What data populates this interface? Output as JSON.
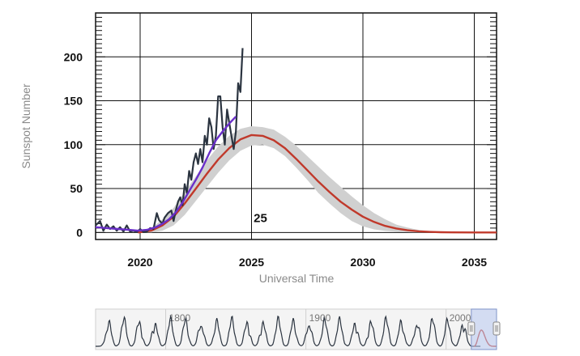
{
  "chart_data": {
    "type": "line",
    "title": "",
    "xlabel": "Universal Time",
    "ylabel": "Sunspot Number",
    "xlim": [
      2018.0,
      2036.0
    ],
    "ylim": [
      -8,
      250
    ],
    "x_ticks": [
      "2020",
      "2025",
      "2030",
      "2035"
    ],
    "y_ticks": [
      "0",
      "50",
      "100",
      "150",
      "200"
    ],
    "grid": true,
    "annotation": {
      "text": "25",
      "x": 2025.4,
      "y": 12
    },
    "series": [
      {
        "role": "observed-monthly",
        "color": "#2b3440",
        "points": [
          [
            2018.0,
            8
          ],
          [
            2018.2,
            13
          ],
          [
            2018.35,
            2
          ],
          [
            2018.5,
            9
          ],
          [
            2018.65,
            4
          ],
          [
            2018.8,
            7
          ],
          [
            2018.95,
            2
          ],
          [
            2019.1,
            6
          ],
          [
            2019.25,
            1
          ],
          [
            2019.4,
            8
          ],
          [
            2019.55,
            1
          ],
          [
            2019.7,
            2
          ],
          [
            2019.85,
            0.5
          ],
          [
            2020.0,
            4
          ],
          [
            2020.15,
            0.5
          ],
          [
            2020.3,
            1
          ],
          [
            2020.45,
            5
          ],
          [
            2020.6,
            4
          ],
          [
            2020.75,
            22
          ],
          [
            2020.85,
            14
          ],
          [
            2021.0,
            10
          ],
          [
            2021.1,
            17
          ],
          [
            2021.25,
            22
          ],
          [
            2021.4,
            25
          ],
          [
            2021.5,
            13
          ],
          [
            2021.6,
            25
          ],
          [
            2021.7,
            35
          ],
          [
            2021.8,
            40
          ],
          [
            2021.9,
            31
          ],
          [
            2022.0,
            55
          ],
          [
            2022.1,
            45
          ],
          [
            2022.2,
            70
          ],
          [
            2022.3,
            60
          ],
          [
            2022.4,
            80
          ],
          [
            2022.5,
            90
          ],
          [
            2022.6,
            78
          ],
          [
            2022.7,
            95
          ],
          [
            2022.8,
            80
          ],
          [
            2022.9,
            110
          ],
          [
            2023.0,
            100
          ],
          [
            2023.1,
            130
          ],
          [
            2023.2,
            120
          ],
          [
            2023.3,
            95
          ],
          [
            2023.4,
            110
          ],
          [
            2023.5,
            155
          ],
          [
            2023.6,
            155
          ],
          [
            2023.7,
            120
          ],
          [
            2023.8,
            100
          ],
          [
            2023.9,
            140
          ],
          [
            2024.0,
            125
          ],
          [
            2024.1,
            110
          ],
          [
            2024.2,
            95
          ],
          [
            2024.3,
            115
          ],
          [
            2024.4,
            170
          ],
          [
            2024.5,
            160
          ],
          [
            2024.6,
            210
          ]
        ]
      },
      {
        "role": "observed-smoothed",
        "color": "#6a2fc9",
        "points": [
          [
            2018.0,
            6
          ],
          [
            2018.5,
            5
          ],
          [
            2019.0,
            4
          ],
          [
            2019.5,
            3
          ],
          [
            2019.9,
            2
          ],
          [
            2020.3,
            3
          ],
          [
            2020.7,
            6
          ],
          [
            2021.0,
            10
          ],
          [
            2021.3,
            15
          ],
          [
            2021.6,
            23
          ],
          [
            2021.9,
            34
          ],
          [
            2022.2,
            47
          ],
          [
            2022.5,
            60
          ],
          [
            2022.8,
            74
          ],
          [
            2023.1,
            90
          ],
          [
            2023.4,
            105
          ],
          [
            2023.7,
            115
          ],
          [
            2024.0,
            124
          ],
          [
            2024.3,
            132
          ]
        ]
      },
      {
        "role": "predicted",
        "color": "#c0392b",
        "points": [
          [
            2019.9,
            0
          ],
          [
            2020.5,
            2
          ],
          [
            2021.0,
            8
          ],
          [
            2021.5,
            18
          ],
          [
            2022.0,
            33
          ],
          [
            2022.5,
            50
          ],
          [
            2023.0,
            67
          ],
          [
            2023.5,
            83
          ],
          [
            2024.0,
            96
          ],
          [
            2024.5,
            106
          ],
          [
            2025.0,
            111
          ],
          [
            2025.5,
            110
          ],
          [
            2026.0,
            105
          ],
          [
            2026.5,
            96
          ],
          [
            2027.0,
            84
          ],
          [
            2027.5,
            71
          ],
          [
            2028.0,
            58
          ],
          [
            2028.5,
            46
          ],
          [
            2029.0,
            35
          ],
          [
            2029.5,
            26
          ],
          [
            2030.0,
            18
          ],
          [
            2030.5,
            12
          ],
          [
            2031.0,
            7.5
          ],
          [
            2031.5,
            4.5
          ],
          [
            2032.0,
            2.5
          ],
          [
            2032.5,
            1.3
          ],
          [
            2033.0,
            0.7
          ],
          [
            2033.5,
            0.3
          ],
          [
            2034.0,
            0.1
          ],
          [
            2035.0,
            0
          ],
          [
            2036.0,
            0
          ]
        ]
      },
      {
        "role": "predicted-range",
        "color": "#d0d0d0",
        "upper": [
          [
            2019.9,
            0
          ],
          [
            2020.5,
            5
          ],
          [
            2021.0,
            15
          ],
          [
            2021.5,
            28
          ],
          [
            2022.0,
            46
          ],
          [
            2022.5,
            64
          ],
          [
            2023.0,
            82
          ],
          [
            2023.5,
            98
          ],
          [
            2024.0,
            110
          ],
          [
            2024.5,
            118
          ],
          [
            2025.0,
            121
          ],
          [
            2025.5,
            120
          ],
          [
            2026.0,
            117
          ],
          [
            2026.5,
            109
          ],
          [
            2027.0,
            99
          ],
          [
            2027.5,
            87
          ],
          [
            2028.0,
            75
          ],
          [
            2028.5,
            63
          ],
          [
            2029.0,
            52
          ],
          [
            2029.5,
            41
          ],
          [
            2030.0,
            31
          ],
          [
            2030.5,
            22
          ],
          [
            2031.0,
            15
          ],
          [
            2031.5,
            9
          ],
          [
            2032.0,
            5.5
          ],
          [
            2032.5,
            3
          ],
          [
            2033.0,
            1.6
          ],
          [
            2033.5,
            0.8
          ],
          [
            2034.0,
            0.3
          ],
          [
            2035.0,
            0
          ],
          [
            2036.0,
            0
          ]
        ],
        "lower": [
          [
            2019.9,
            0
          ],
          [
            2020.5,
            0
          ],
          [
            2021.0,
            2
          ],
          [
            2021.5,
            8
          ],
          [
            2022.0,
            20
          ],
          [
            2022.5,
            36
          ],
          [
            2023.0,
            52
          ],
          [
            2023.5,
            68
          ],
          [
            2024.0,
            82
          ],
          [
            2024.5,
            93
          ],
          [
            2025.0,
            99
          ],
          [
            2025.5,
            100
          ],
          [
            2026.0,
            96
          ],
          [
            2026.5,
            87
          ],
          [
            2027.0,
            74
          ],
          [
            2027.5,
            60
          ],
          [
            2028.0,
            45
          ],
          [
            2028.5,
            33
          ],
          [
            2029.0,
            22
          ],
          [
            2029.5,
            13
          ],
          [
            2030.0,
            7
          ],
          [
            2030.5,
            3.5
          ],
          [
            2031.0,
            1.8
          ],
          [
            2031.5,
            0.8
          ],
          [
            2032.0,
            0.3
          ],
          [
            2032.5,
            0
          ],
          [
            2036.0,
            0
          ]
        ]
      }
    ],
    "navigator": {
      "labels": [
        "1800",
        "1900",
        "2000"
      ],
      "xlim": [
        1750,
        2036
      ],
      "window": [
        2018,
        2036
      ],
      "series_color": "#2b3440",
      "predicted_color": "#c0392b",
      "window_color": "#b8c8f0"
    }
  }
}
